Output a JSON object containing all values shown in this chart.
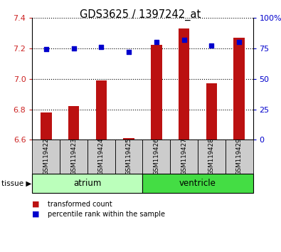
{
  "title": "GDS3625 / 1397242_at",
  "samples": [
    "GSM119422",
    "GSM119423",
    "GSM119424",
    "GSM119425",
    "GSM119426",
    "GSM119427",
    "GSM119428",
    "GSM119429"
  ],
  "transformed_counts": [
    6.78,
    6.82,
    6.99,
    6.61,
    7.22,
    7.33,
    6.97,
    7.27
  ],
  "percentile_ranks": [
    74,
    75,
    76,
    72,
    80,
    82,
    77,
    80
  ],
  "ylim_left": [
    6.6,
    7.4
  ],
  "ylim_right": [
    0,
    100
  ],
  "yticks_left": [
    6.6,
    6.8,
    7.0,
    7.2,
    7.4
  ],
  "yticks_right": [
    0,
    25,
    50,
    75,
    100
  ],
  "ytick_labels_right": [
    "0",
    "25",
    "50",
    "75",
    "100%"
  ],
  "tissue_groups": [
    {
      "label": "atrium",
      "start": 0,
      "end": 3,
      "color": "#bbffbb"
    },
    {
      "label": "ventricle",
      "start": 4,
      "end": 7,
      "color": "#44dd44"
    }
  ],
  "bar_color": "#bb1111",
  "dot_color": "#0000cc",
  "bar_bottom": 6.6,
  "yleft_color": "#cc2222",
  "yright_color": "#0000cc",
  "legend_items": [
    {
      "color": "#bb1111",
      "label": "transformed count"
    },
    {
      "color": "#0000cc",
      "label": "percentile rank within the sample"
    }
  ],
  "sample_bg": "#cccccc",
  "tissue_label": "tissue"
}
